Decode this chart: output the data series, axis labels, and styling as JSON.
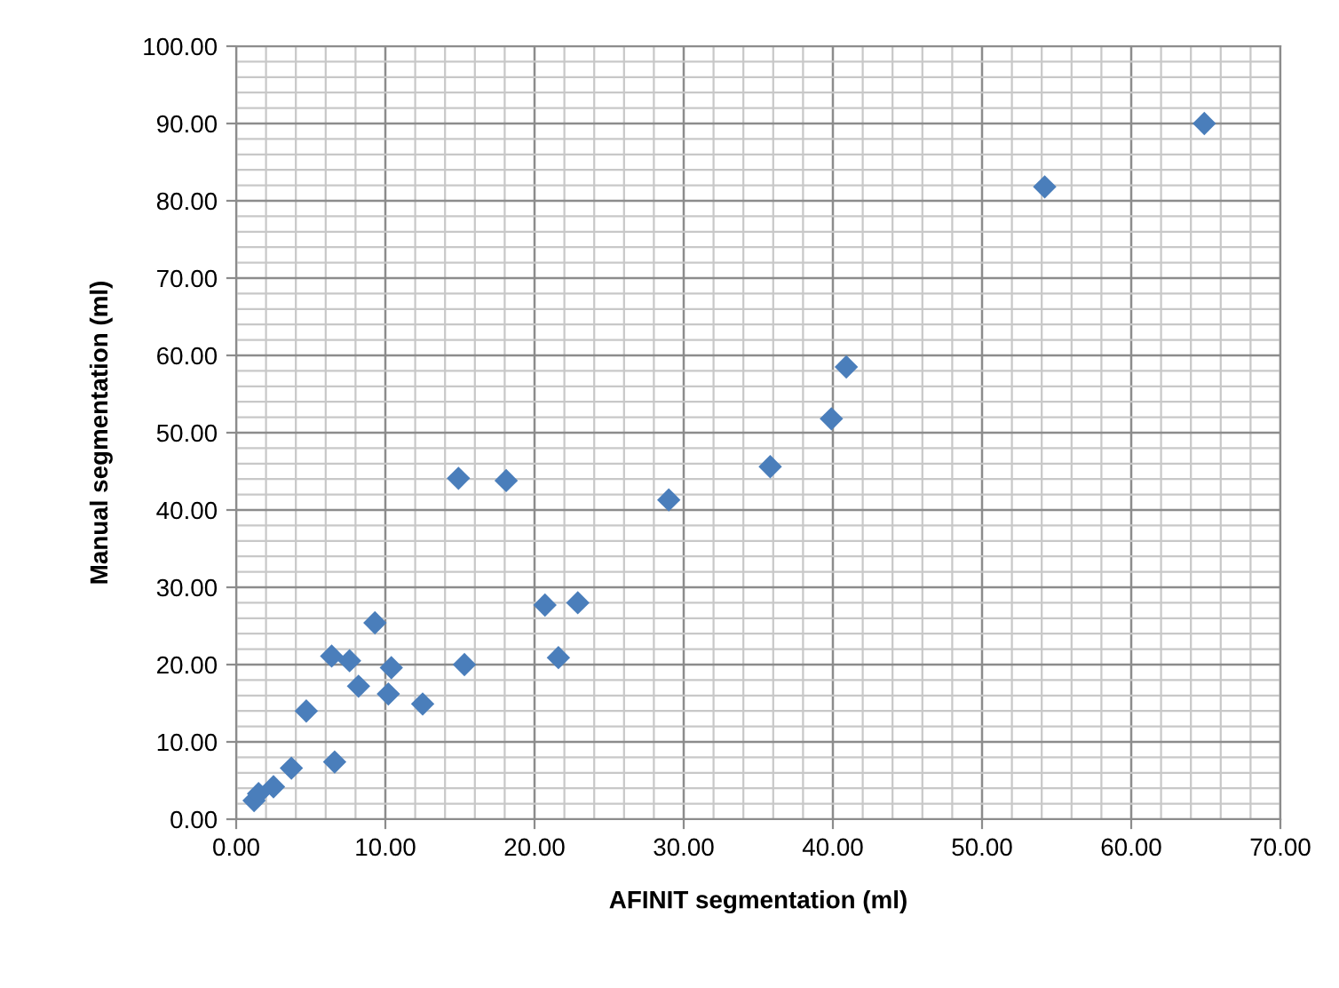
{
  "chart_data": {
    "type": "scatter",
    "xlabel": "AFINIT segmentation (ml)",
    "ylabel": "Manual segmentation (ml)",
    "x": [
      1.2,
      1.5,
      2.5,
      3.7,
      4.7,
      6.6,
      6.4,
      7.6,
      8.2,
      9.3,
      10.4,
      10.2,
      12.5,
      15.3,
      20.7,
      22.9,
      21.6,
      14.9,
      18.1,
      29.0,
      35.8,
      39.9,
      40.9,
      54.2,
      64.9
    ],
    "values": [
      2.4,
      3.3,
      4.2,
      6.6,
      14.0,
      7.4,
      21.1,
      20.5,
      17.2,
      25.4,
      19.6,
      16.2,
      14.9,
      20.0,
      27.7,
      28.0,
      20.9,
      44.1,
      43.8,
      41.3,
      45.6,
      51.8,
      58.5,
      81.8,
      90.0
    ],
    "color": "#4a7ebb",
    "marker": "diamond",
    "grid": true,
    "xlim": [
      0,
      70
    ],
    "ylim": [
      0,
      100
    ],
    "xticks": [
      {
        "value": 0,
        "label": "0.00"
      },
      {
        "value": 10,
        "label": "10.00"
      },
      {
        "value": 20,
        "label": "20.00"
      },
      {
        "value": 30,
        "label": "30.00"
      },
      {
        "value": 40,
        "label": "40.00"
      },
      {
        "value": 50,
        "label": "50.00"
      },
      {
        "value": 60,
        "label": "60.00"
      },
      {
        "value": 70,
        "label": "70.00"
      }
    ],
    "yticks": [
      {
        "value": 0,
        "label": "0.00"
      },
      {
        "value": 10,
        "label": "10.00"
      },
      {
        "value": 20,
        "label": "20.00"
      },
      {
        "value": 30,
        "label": "30.00"
      },
      {
        "value": 40,
        "label": "40.00"
      },
      {
        "value": 50,
        "label": "50.00"
      },
      {
        "value": 60,
        "label": "60.00"
      },
      {
        "value": 70,
        "label": "70.00"
      },
      {
        "value": 80,
        "label": "80.00"
      },
      {
        "value": 90,
        "label": "90.00"
      },
      {
        "value": 100,
        "label": "100.00"
      }
    ]
  }
}
